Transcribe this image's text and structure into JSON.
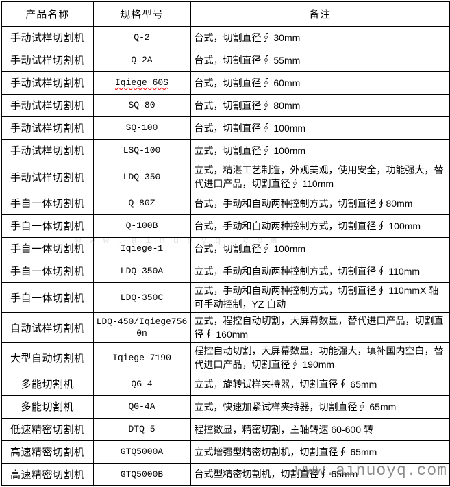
{
  "table": {
    "headers": [
      "产品名称",
      "规格型号",
      "备注"
    ],
    "rows": [
      {
        "name": "手动试样切割机",
        "model": "Q-2",
        "note": "台式，切割直径∮ 30mm"
      },
      {
        "name": "手动试样切割机",
        "model": "Q-2A",
        "note": "台式，切割直径∮ 55mm"
      },
      {
        "name": "手动试样切割机",
        "model": "Iqiege 60S",
        "note": "台式，切割直径∮ 60mm",
        "spellcheck": true
      },
      {
        "name": "手动试样切割机",
        "model": "SQ-80",
        "note": "台式，切割直径∮ 80mm"
      },
      {
        "name": "手动试样切割机",
        "model": "SQ-100",
        "note": "台式，切割直径∮ 100mm"
      },
      {
        "name": "手动试样切割机",
        "model": "LSQ-100",
        "note": "立式，切割直径∮ 100mm"
      },
      {
        "name": "手动试样切割机",
        "model": "LDQ-350",
        "note": "立式，精湛工艺制造，外观美观，使用安全，功能强大，替代进口产品，切割直径∮ 110mm",
        "tall": true
      },
      {
        "name": "手自一体切割机",
        "model": "Q-80Z",
        "note": "台式，手动和自动两种控制方式，切割直径∮80mm"
      },
      {
        "name": "手自一体切割机",
        "model": "Q-100B",
        "note": "台式，手动和自动两种控制方式，切割直径∮ 100mm"
      },
      {
        "name": "手自一体切割机",
        "model": "Iqiege-1",
        "note": "台式，切割直径∮ 100mm"
      },
      {
        "name": "手自一体切割机",
        "model": "LDQ-350A",
        "note": "立式，手动和自动两种控制方式，切割直径∮ 110mm"
      },
      {
        "name": "手自一体切割机",
        "model": "LDQ-350C",
        "note": "立式，手动和自动两种控制方式，切割直径∮ 110mmX 轴可手动控制，YZ 自动",
        "tall": true
      },
      {
        "name": "自动试样切割机",
        "model": "LDQ-450/Iqiege756\n0n",
        "note": "立式，程控自动切割，大屏幕数显，替代进口产品，切割直径∮ 160mm",
        "tall": true
      },
      {
        "name": "大型自动切割机",
        "model": "Iqiege-7190",
        "note": "程控自动切割，大屏幕数显，功能强大，填补国内空白，替代进口产品，切割直径∮ 190mm",
        "tall": true
      },
      {
        "name": "多能切割机",
        "model": "QG-4",
        "note": "立式，旋转试样夹持器，切割直径∮ 65mm"
      },
      {
        "name": "多能切割机",
        "model": "QG-4A",
        "note": "立式，快速加紧试样夹持器，切割直径∮ 65mm"
      },
      {
        "name": "低速精密切割机",
        "model": "DTQ-5",
        "note": "程控数显，精密切割，主轴转速 60-600 转"
      },
      {
        "name": "高速精密切割机",
        "model": "GTQ5000A",
        "note": "立式增强型精密切割机，切割直径∮ 65mm"
      },
      {
        "name": "高速精密切割机",
        "model": "GTQ5000B",
        "note": "台式型精密切割机，切割直径∮ 65mm"
      }
    ]
  },
  "watermark": {
    "text": "www.ainuoyq.com"
  },
  "colors": {
    "border": "#000000",
    "text": "#000000",
    "background": "#ffffff",
    "spellcheck_underline": "#ff0000",
    "watermark_gray": "#5f5f5f"
  }
}
